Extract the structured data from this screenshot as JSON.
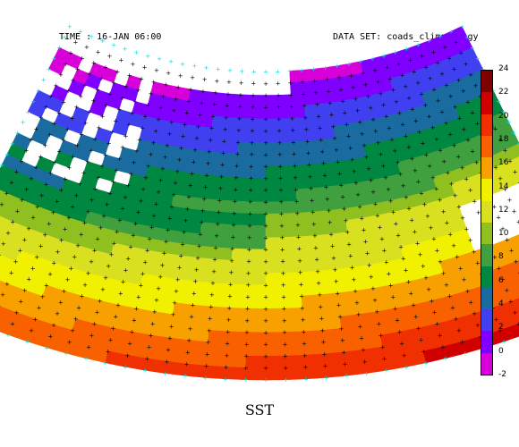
{
  "header": {
    "time": "TIME : 16-JAN 06:00",
    "dataset": "DATA SET: coads_climatology"
  },
  "title": "SST",
  "colorbar": {
    "levels": [
      "24",
      "22",
      "20",
      "18",
      "16",
      "14",
      "12",
      "10",
      "8",
      "6",
      "4",
      "2",
      "0",
      "-2"
    ],
    "colors": [
      "#d800d8",
      "#8000ff",
      "#4040f0",
      "#1a6ca0",
      "#008840",
      "#40a040",
      "#90c020",
      "#d8e020",
      "#f0f000",
      "#f8a000",
      "#f86000",
      "#f03000",
      "#d00000",
      "#800000"
    ]
  },
  "map": {
    "projection": "polar-sector",
    "land_marker": "+",
    "ocean_dot_color": "#00e0e0",
    "land_dot_color": "#000000"
  }
}
